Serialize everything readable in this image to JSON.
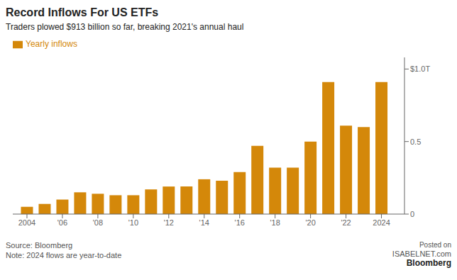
{
  "chart_data": {
    "type": "bar",
    "title": "Record Inflows For US ETFs",
    "subtitle": "Traders plowed $913 billion so far, breaking 2021's annual haul",
    "annotations": [
      "Source: Bloomberg",
      "Note: 2024 flows are year-to-date",
      "Posted on",
      "ISABELNET.com",
      "Bloomberg"
    ],
    "x": [
      2004,
      2005,
      2006,
      2007,
      2008,
      2009,
      2010,
      2011,
      2012,
      2013,
      2014,
      2015,
      2016,
      2017,
      2018,
      2019,
      2020,
      2021,
      2022,
      2023,
      2024
    ],
    "series": [
      {
        "name": "Yearly inflows",
        "color": "#D4880A",
        "values": [
          0.05,
          0.07,
          0.1,
          0.15,
          0.14,
          0.13,
          0.13,
          0.17,
          0.19,
          0.19,
          0.24,
          0.23,
          0.29,
          0.47,
          0.32,
          0.32,
          0.5,
          0.91,
          0.61,
          0.6,
          0.91
        ]
      }
    ],
    "xlim": [
      2003.2,
      2025.3
    ],
    "xticks": [
      2004,
      {
        "value": 2006,
        "label": "'06"
      },
      {
        "value": 2008,
        "label": "'08"
      },
      {
        "value": 2010,
        "label": "'10"
      },
      {
        "value": 2012,
        "label": "'12"
      },
      {
        "value": 2014,
        "label": "'14"
      },
      {
        "value": 2016,
        "label": "'16"
      },
      {
        "value": 2018,
        "label": "'18"
      },
      {
        "value": 2020,
        "label": "'20"
      },
      {
        "value": 2022,
        "label": "'22"
      },
      2024
    ],
    "ylim": [
      0,
      1.08
    ],
    "yticks": [
      0,
      0.5,
      {
        "value": 1.0,
        "label": "$1.0T"
      }
    ],
    "grid": false
  }
}
